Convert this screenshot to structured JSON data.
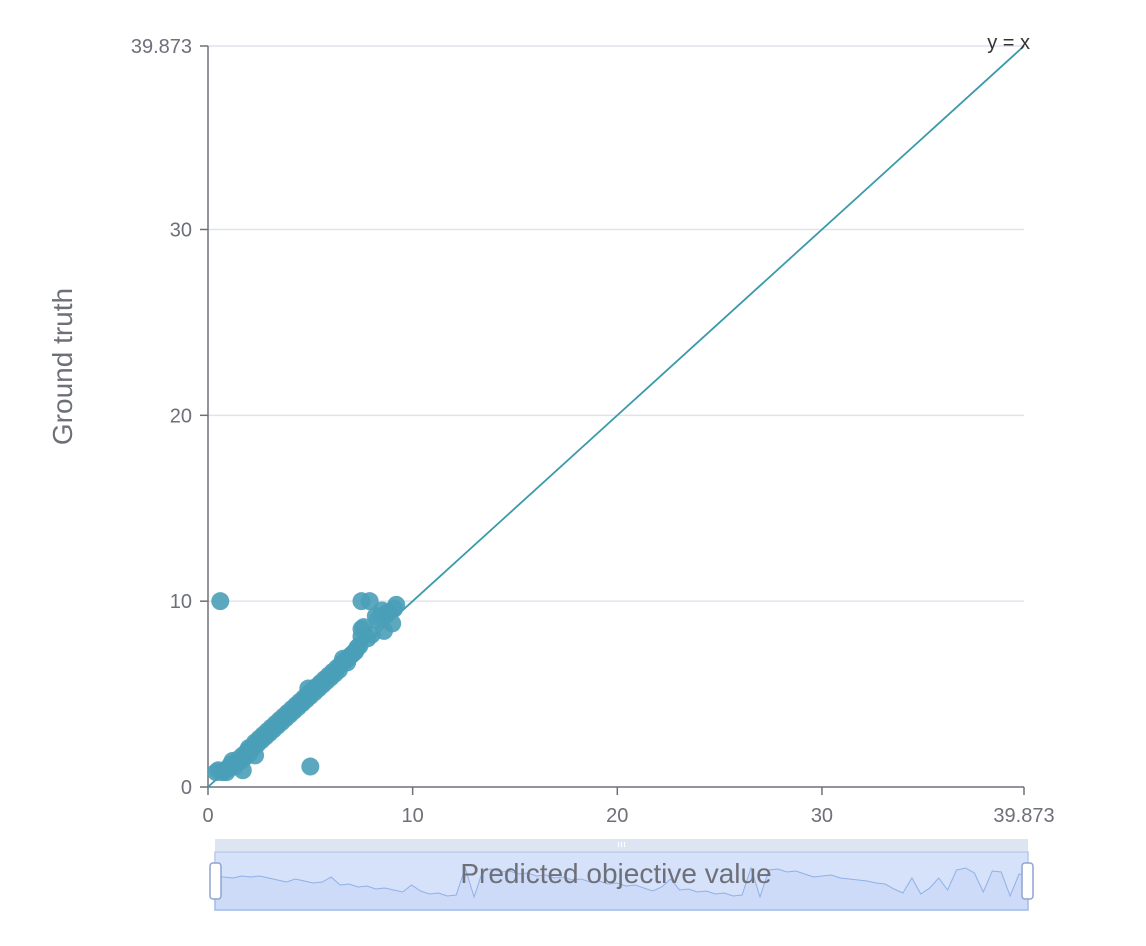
{
  "chart_data": {
    "type": "scatter",
    "xlabel": "Predicted objective value",
    "ylabel": "Ground truth",
    "xlim": [
      0,
      39.873
    ],
    "ylim": [
      0,
      39.873
    ],
    "xticks": [
      "0",
      "10",
      "20",
      "30",
      "39.873"
    ],
    "yticks": [
      "0",
      "10",
      "20",
      "30",
      "39.873"
    ],
    "grid": "horizontal",
    "reference_line": {
      "label": "y = x",
      "slope": 1,
      "intercept": 0
    },
    "colors": {
      "points": "#4a9fb8",
      "line": "#3a9aaa",
      "grid": "#e0e3ee",
      "axis": "#6e7079",
      "zoom_fill": "#d6e2fa",
      "zoom_border": "#b9c9ea",
      "zoom_line": "#8fb0e8"
    },
    "points": [
      [
        0.4,
        0.8
      ],
      [
        0.5,
        0.9
      ],
      [
        0.6,
        10.0
      ],
      [
        0.7,
        0.8
      ],
      [
        0.8,
        0.9
      ],
      [
        0.9,
        0.8
      ],
      [
        1.0,
        1.0
      ],
      [
        1.1,
        1.2
      ],
      [
        1.2,
        1.4
      ],
      [
        1.3,
        1.1
      ],
      [
        1.4,
        1.3
      ],
      [
        1.5,
        1.5
      ],
      [
        1.6,
        1.4
      ],
      [
        1.7,
        0.9
      ],
      [
        1.7,
        1.7
      ],
      [
        1.8,
        1.6
      ],
      [
        1.9,
        1.9
      ],
      [
        2.0,
        1.8
      ],
      [
        2.0,
        2.1
      ],
      [
        2.1,
        2.0
      ],
      [
        2.2,
        2.2
      ],
      [
        2.3,
        2.4
      ],
      [
        2.3,
        1.7
      ],
      [
        2.4,
        2.3
      ],
      [
        2.5,
        2.6
      ],
      [
        2.6,
        2.5
      ],
      [
        2.7,
        2.8
      ],
      [
        2.8,
        2.7
      ],
      [
        2.9,
        3.0
      ],
      [
        3.0,
        2.9
      ],
      [
        3.1,
        3.2
      ],
      [
        3.2,
        3.1
      ],
      [
        3.3,
        3.4
      ],
      [
        3.4,
        3.3
      ],
      [
        3.5,
        3.6
      ],
      [
        3.6,
        3.5
      ],
      [
        3.7,
        3.8
      ],
      [
        3.8,
        3.7
      ],
      [
        3.9,
        4.0
      ],
      [
        4.0,
        3.9
      ],
      [
        4.1,
        4.2
      ],
      [
        4.2,
        4.1
      ],
      [
        4.3,
        4.4
      ],
      [
        4.4,
        4.3
      ],
      [
        4.5,
        4.6
      ],
      [
        4.6,
        4.5
      ],
      [
        4.7,
        4.8
      ],
      [
        4.8,
        4.7
      ],
      [
        4.9,
        5.0
      ],
      [
        4.9,
        5.3
      ],
      [
        5.0,
        4.9
      ],
      [
        5.0,
        1.1
      ],
      [
        5.1,
        5.2
      ],
      [
        5.2,
        5.1
      ],
      [
        5.3,
        5.4
      ],
      [
        5.4,
        5.3
      ],
      [
        5.5,
        5.6
      ],
      [
        5.6,
        5.5
      ],
      [
        5.7,
        5.8
      ],
      [
        5.8,
        5.7
      ],
      [
        5.9,
        6.0
      ],
      [
        6.0,
        5.9
      ],
      [
        6.1,
        6.2
      ],
      [
        6.2,
        6.1
      ],
      [
        6.3,
        6.4
      ],
      [
        6.4,
        6.3
      ],
      [
        6.5,
        6.6
      ],
      [
        6.6,
        6.9
      ],
      [
        6.7,
        6.8
      ],
      [
        6.8,
        6.7
      ],
      [
        6.9,
        7.0
      ],
      [
        7.0,
        7.1
      ],
      [
        7.1,
        7.2
      ],
      [
        7.2,
        7.3
      ],
      [
        7.3,
        7.5
      ],
      [
        7.4,
        7.6
      ],
      [
        7.5,
        8.1
      ],
      [
        7.5,
        8.5
      ],
      [
        7.5,
        10.0
      ],
      [
        7.6,
        8.6
      ],
      [
        7.8,
        8.0
      ],
      [
        7.9,
        10.0
      ],
      [
        8.0,
        8.2
      ],
      [
        8.2,
        9.2
      ],
      [
        8.3,
        9.0
      ],
      [
        8.5,
        9.5
      ],
      [
        8.6,
        8.4
      ],
      [
        8.7,
        9.3
      ],
      [
        8.8,
        9.4
      ],
      [
        9.0,
        8.8
      ],
      [
        9.1,
        9.6
      ],
      [
        9.2,
        9.8
      ]
    ]
  }
}
